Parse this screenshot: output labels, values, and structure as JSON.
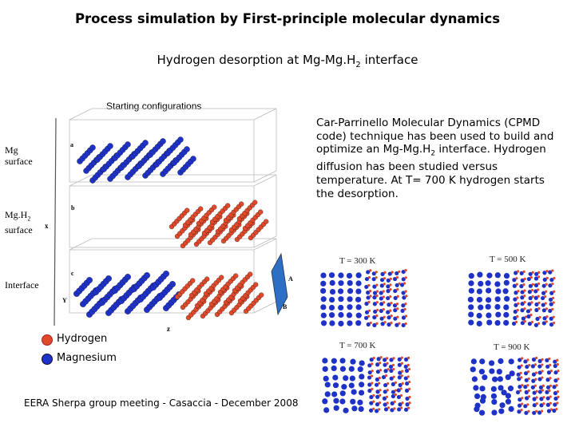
{
  "slide": {
    "title": "Process simulation by First-principle molecular dynamics",
    "subtitle": {
      "text": "Hydrogen desorption at Mg-Mg.H",
      "sub": "2",
      "after": " interface"
    },
    "starting_label": "Starting configurations",
    "left_labels": {
      "mg_surface": [
        "Mg",
        "surface"
      ],
      "mgh2_surface": {
        "text": "Mg.H",
        "sub": "2",
        "line2": "surface"
      },
      "interface": "Interface"
    },
    "axis_labels": {
      "a": "a",
      "b": "b",
      "c": "c",
      "x": "x",
      "y": "Y",
      "z": "z",
      "A": "A",
      "B": "B"
    },
    "description": {
      "part1": "Car-Parrinello Molecular Dynamics (CPMD code) technique has been used to build and optimize an Mg-Mg.H",
      "sub": "2",
      "part2": " interface. Hydrogen diffusion has been studied versus temperature. At T= 700 K hydrogen starts the desorption."
    },
    "temperatures": [
      "T = 300 K",
      "T = 500 K",
      "T = 700 K",
      "T = 900 K"
    ],
    "legend": [
      {
        "label": "Hydrogen",
        "color": "#e0492a"
      },
      {
        "label": "Magnesium",
        "color": "#1f32c8"
      }
    ],
    "footer": "EERA Sherpa group meeting - Casaccia - December 2008"
  }
}
